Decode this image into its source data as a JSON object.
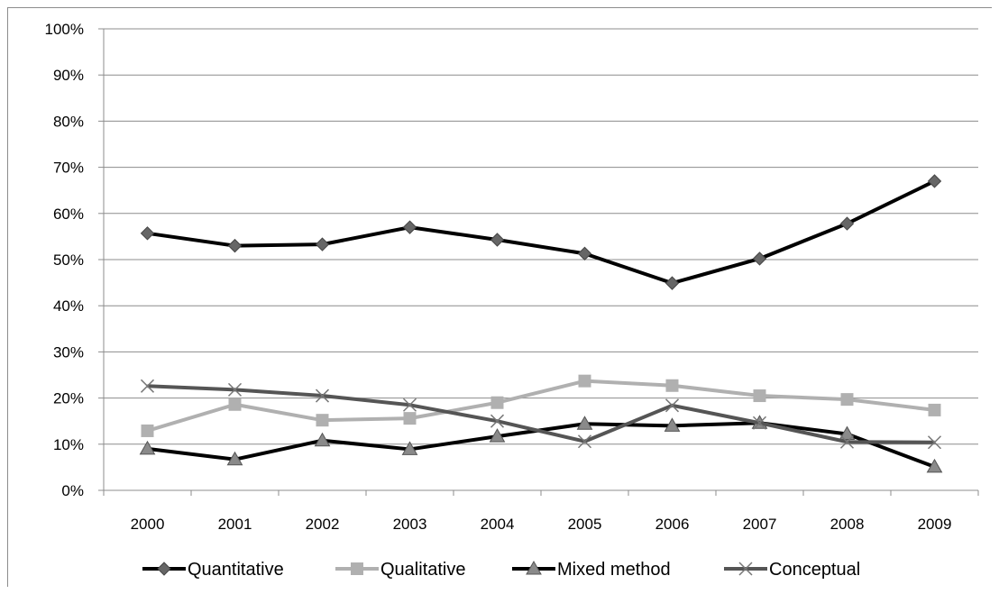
{
  "chart_data": {
    "type": "line",
    "categories": [
      "2000",
      "2001",
      "2002",
      "2003",
      "2004",
      "2005",
      "2006",
      "2007",
      "2008",
      "2009"
    ],
    "ylim": [
      0,
      100
    ],
    "yticks": [
      "0%",
      "10%",
      "20%",
      "30%",
      "40%",
      "50%",
      "60%",
      "70%",
      "80%",
      "90%",
      "100%"
    ],
    "grid": true,
    "legend_position": "bottom",
    "series": [
      {
        "name": "Quantitative",
        "color": "#000000",
        "marker": "diamond",
        "values": [
          55.7,
          53.0,
          53.3,
          57.0,
          54.3,
          51.3,
          44.9,
          50.2,
          57.8,
          67.0
        ]
      },
      {
        "name": "Qualitative",
        "color": "#b0b0b0",
        "marker": "square",
        "values": [
          12.9,
          18.6,
          15.2,
          15.6,
          19.0,
          23.7,
          22.7,
          20.5,
          19.7,
          17.4
        ]
      },
      {
        "name": "Mixed method",
        "color": "#000000",
        "marker": "triangle",
        "values": [
          9.0,
          6.7,
          10.8,
          8.9,
          11.7,
          14.4,
          14.0,
          14.6,
          12.2,
          5.1
        ]
      },
      {
        "name": "Conceptual",
        "color": "#555555",
        "marker": "x",
        "values": [
          22.6,
          21.8,
          20.5,
          18.5,
          15.0,
          10.6,
          18.4,
          14.6,
          10.5,
          10.4
        ]
      }
    ]
  }
}
